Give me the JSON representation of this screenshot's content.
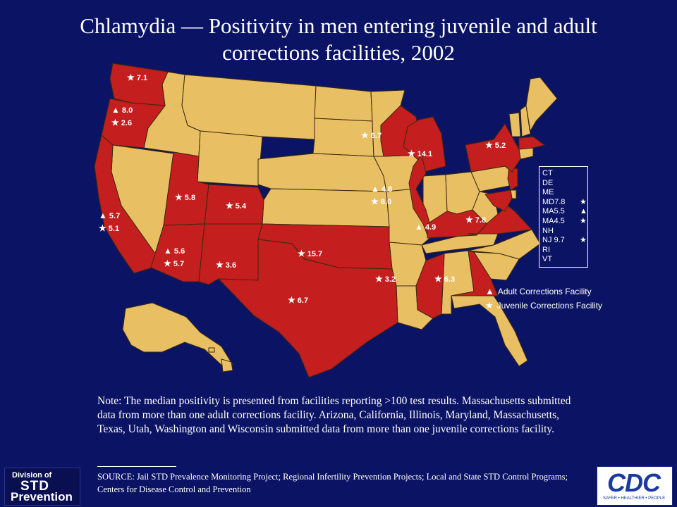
{
  "title": "Chlamydia — Positivity in men entering juvenile and adult corrections facilities, 2002",
  "symbols": {
    "adult": "▲",
    "juvenile": "★"
  },
  "colors": {
    "background": "#0b1464",
    "reporting_state": "#c41e1e",
    "other_state": "#e9bf63"
  },
  "legend": {
    "adult": "Adult Corrections Facility",
    "juvenile": "Juvenile Corrections Facility"
  },
  "state_values": [
    {
      "state": "WA",
      "entries": [
        {
          "type": "juvenile",
          "value": "7.1"
        }
      ]
    },
    {
      "state": "OR",
      "entries": [
        {
          "type": "adult",
          "value": "8.0"
        },
        {
          "type": "juvenile",
          "value": "2.6"
        }
      ]
    },
    {
      "state": "CA",
      "entries": [
        {
          "type": "adult",
          "value": "5.7"
        },
        {
          "type": "juvenile",
          "value": "5.1"
        }
      ]
    },
    {
      "state": "UT",
      "entries": [
        {
          "type": "juvenile",
          "value": "5.8"
        }
      ]
    },
    {
      "state": "CO",
      "entries": [
        {
          "type": "juvenile",
          "value": "5.4"
        }
      ]
    },
    {
      "state": "AZ",
      "entries": [
        {
          "type": "adult",
          "value": "5.6"
        },
        {
          "type": "juvenile",
          "value": "5.7"
        }
      ]
    },
    {
      "state": "NM",
      "entries": [
        {
          "type": "juvenile",
          "value": "3.6"
        }
      ]
    },
    {
      "state": "OK",
      "entries": [
        {
          "type": "juvenile",
          "value": "15.7"
        }
      ]
    },
    {
      "state": "TX",
      "entries": [
        {
          "type": "juvenile",
          "value": "6.7"
        }
      ]
    },
    {
      "state": "WI",
      "entries": [
        {
          "type": "juvenile",
          "value": "6.7"
        }
      ]
    },
    {
      "state": "MI",
      "entries": [
        {
          "type": "juvenile",
          "value": "14.1"
        }
      ]
    },
    {
      "state": "IL",
      "entries": [
        {
          "type": "adult",
          "value": "4.8"
        },
        {
          "type": "juvenile",
          "value": "8.0"
        }
      ]
    },
    {
      "state": "KY",
      "entries": [
        {
          "type": "adult",
          "value": "4.9"
        }
      ]
    },
    {
      "state": "VA",
      "entries": [
        {
          "type": "juvenile",
          "value": "7.8"
        }
      ]
    },
    {
      "state": "NY",
      "entries": [
        {
          "type": "juvenile",
          "value": "5.2"
        }
      ]
    },
    {
      "state": "MS",
      "entries": [
        {
          "type": "juvenile",
          "value": "3.2"
        }
      ]
    },
    {
      "state": "GA",
      "entries": [
        {
          "type": "juvenile",
          "value": "6.3"
        }
      ]
    }
  ],
  "small_states": [
    {
      "label": "CT",
      "value": "",
      "type": ""
    },
    {
      "label": "DE",
      "value": "",
      "type": ""
    },
    {
      "label": "ME",
      "value": "",
      "type": ""
    },
    {
      "label": "MD",
      "value": "7.8",
      "type": "juvenile"
    },
    {
      "label": "MA",
      "value": "5.5",
      "type": "adult"
    },
    {
      "label": "MA",
      "value": "4.5",
      "type": "juvenile"
    },
    {
      "label": "NH",
      "value": "",
      "type": ""
    },
    {
      "label": "NJ",
      "value": "9.7",
      "type": "juvenile"
    },
    {
      "label": "RI",
      "value": "",
      "type": ""
    },
    {
      "label": "VT",
      "value": "",
      "type": ""
    }
  ],
  "note": "Note: The median positivity is presented from facilities reporting >100 test results. Massachusetts submitted data from more than one adult corrections facility. Arizona, California, Illinois, Maryland, Massachusetts, Texas, Utah, Washington and Wisconsin submitted data from more than one juvenile corrections facility.",
  "source": "SOURCE: Jail STD Prevalence Monitoring Project; Regional Infertility Prevention Projects; Local and State STD Control Programs; Centers for Disease Control and Prevention",
  "logos": {
    "std": {
      "line1": "Division of",
      "line2": "STD",
      "line3": "Prevention"
    },
    "cdc": {
      "word": "CDC",
      "tagline": "SAFER • HEALTHIER • PEOPLE"
    }
  }
}
